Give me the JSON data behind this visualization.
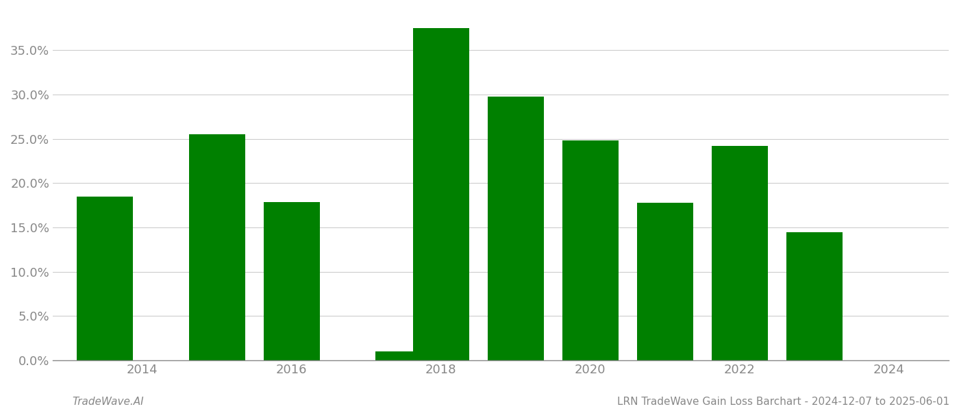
{
  "years": [
    2013.5,
    2015.0,
    2016.0,
    2017.5,
    2018.0,
    2019.0,
    2020.0,
    2021.0,
    2022.0,
    2023.0
  ],
  "values": [
    0.185,
    0.255,
    0.179,
    0.01,
    0.375,
    0.298,
    0.248,
    0.178,
    0.242,
    0.145
  ],
  "bar_color": "#008000",
  "background_color": "#ffffff",
  "grid_color": "#cccccc",
  "axis_color": "#888888",
  "tick_color": "#888888",
  "ylim": [
    0,
    0.395
  ],
  "yticks": [
    0.0,
    0.05,
    0.1,
    0.15,
    0.2,
    0.25,
    0.3,
    0.35
  ],
  "xticks": [
    2014,
    2016,
    2018,
    2020,
    2022,
    2024
  ],
  "xlim": [
    2012.8,
    2024.8
  ],
  "footer_left": "TradeWave.AI",
  "footer_right": "LRN TradeWave Gain Loss Barchart - 2024-12-07 to 2025-06-01",
  "bar_width": 0.75,
  "footer_fontsize": 11,
  "tick_fontsize": 13
}
